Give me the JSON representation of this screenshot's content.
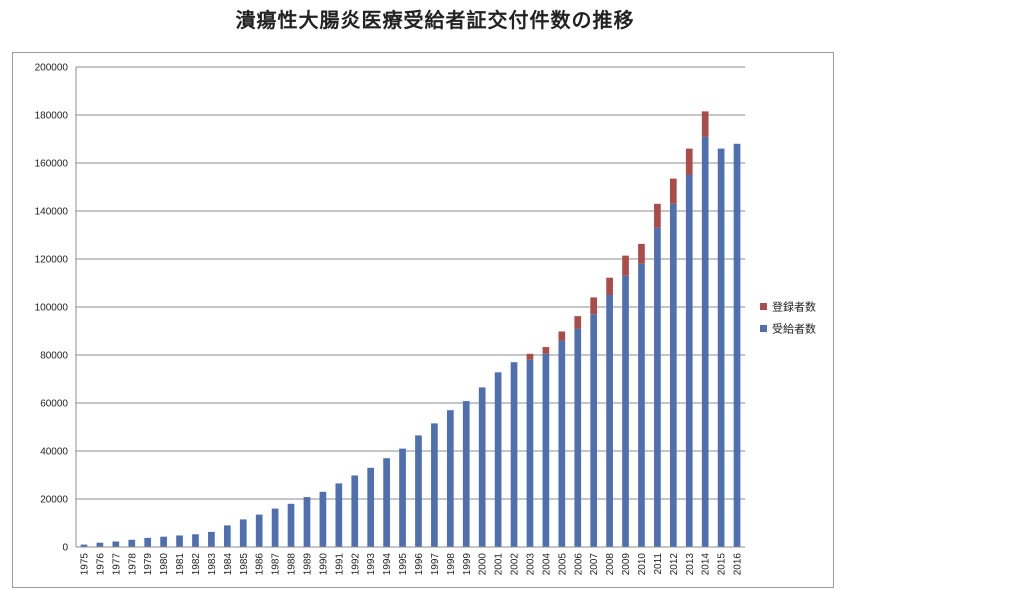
{
  "chart_data": {
    "type": "bar",
    "stacked": true,
    "title": "潰瘍性大腸炎医療受給者証交付件数の推移",
    "xlabel": "",
    "ylabel": "",
    "ylim": [
      0,
      200000
    ],
    "yticks": [
      "0",
      "20000",
      "40000",
      "60000",
      "80000",
      "100000",
      "120000",
      "140000",
      "160000",
      "180000",
      "200000"
    ],
    "grid": true,
    "legend_position": "right",
    "categories": [
      "1975",
      "1976",
      "1977",
      "1978",
      "1979",
      "1980",
      "1981",
      "1982",
      "1983",
      "1984",
      "1985",
      "1986",
      "1987",
      "1988",
      "1989",
      "1990",
      "1991",
      "1992",
      "1993",
      "1994",
      "1995",
      "1996",
      "1997",
      "1998",
      "1999",
      "2000",
      "2001",
      "2002",
      "2003",
      "2004",
      "2005",
      "2006",
      "2007",
      "2008",
      "2009",
      "2010",
      "2011",
      "2012",
      "2013",
      "2014",
      "2015",
      "2016"
    ],
    "series": [
      {
        "name": "受給者数",
        "color": "#4f6fae",
        "values": [
          1000,
          1800,
          2300,
          3000,
          3800,
          4300,
          4800,
          5300,
          6300,
          9000,
          11500,
          13500,
          16000,
          18000,
          20800,
          23000,
          26500,
          29800,
          33000,
          37000,
          41000,
          46500,
          51500,
          57000,
          60800,
          66500,
          72800,
          77000,
          78000,
          80500,
          86000,
          91000,
          97000,
          105000,
          113000,
          118000,
          133000,
          143000,
          155000,
          171000,
          166000,
          168000
        ]
      },
      {
        "name": "登録者数",
        "color": "#a84d4a",
        "values": [
          0,
          0,
          0,
          0,
          0,
          0,
          0,
          0,
          0,
          0,
          0,
          0,
          0,
          0,
          0,
          0,
          0,
          0,
          0,
          0,
          0,
          0,
          0,
          0,
          0,
          0,
          0,
          0,
          2500,
          2800,
          3800,
          5200,
          7000,
          7200,
          8400,
          8300,
          10000,
          10500,
          11000,
          10500,
          0,
          0
        ]
      }
    ],
    "legend_order": [
      "登録者数",
      "受給者数"
    ]
  }
}
